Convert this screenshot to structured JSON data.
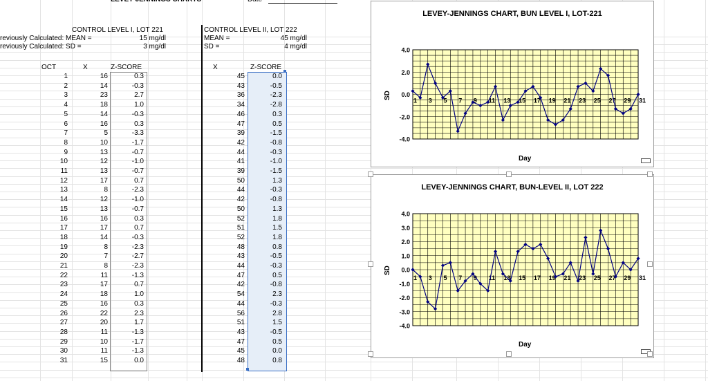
{
  "header": {
    "title_fragment": "LEVEY-JENNINGS CHARTS",
    "date_label": "Date"
  },
  "level1": {
    "header": "CONTROL LEVEL I, LOT 221",
    "mean_row_label": "reviously Calculated:  MEAN =",
    "mean_value": "15 mg/dl",
    "sd_row_label": "reviously Calculated:  SD =",
    "sd_value": "3 mg/dl",
    "col_oct": "OCT",
    "col_x": "X",
    "col_z": "Z-SCORE"
  },
  "level2": {
    "header": "CONTROL LEVEL II, LOT 222",
    "mean_label": "MEAN =",
    "mean_value": "45 mg/dl",
    "sd_label": "SD =",
    "sd_value": "4 mg/dl",
    "col_x": "X",
    "col_z": "Z-SCORE"
  },
  "rows": [
    {
      "day": "1",
      "x1": "16",
      "z1": "0.3",
      "x2": "45",
      "z2": "0.0"
    },
    {
      "day": "2",
      "x1": "14",
      "z1": "-0.3",
      "x2": "43",
      "z2": "-0.5"
    },
    {
      "day": "3",
      "x1": "23",
      "z1": "2.7",
      "x2": "36",
      "z2": "-2.3"
    },
    {
      "day": "4",
      "x1": "18",
      "z1": "1.0",
      "x2": "34",
      "z2": "-2.8"
    },
    {
      "day": "5",
      "x1": "14",
      "z1": "-0.3",
      "x2": "46",
      "z2": "0.3"
    },
    {
      "day": "6",
      "x1": "16",
      "z1": "0.3",
      "x2": "47",
      "z2": "0.5"
    },
    {
      "day": "7",
      "x1": "5",
      "z1": "-3.3",
      "x2": "39",
      "z2": "-1.5"
    },
    {
      "day": "8",
      "x1": "10",
      "z1": "-1.7",
      "x2": "42",
      "z2": "-0.8"
    },
    {
      "day": "9",
      "x1": "13",
      "z1": "-0.7",
      "x2": "44",
      "z2": "-0.3"
    },
    {
      "day": "10",
      "x1": "12",
      "z1": "-1.0",
      "x2": "41",
      "z2": "-1.0"
    },
    {
      "day": "11",
      "x1": "13",
      "z1": "-0.7",
      "x2": "39",
      "z2": "-1.5"
    },
    {
      "day": "12",
      "x1": "17",
      "z1": "0.7",
      "x2": "50",
      "z2": "1.3"
    },
    {
      "day": "13",
      "x1": "8",
      "z1": "-2.3",
      "x2": "44",
      "z2": "-0.3"
    },
    {
      "day": "14",
      "x1": "12",
      "z1": "-1.0",
      "x2": "42",
      "z2": "-0.8"
    },
    {
      "day": "15",
      "x1": "13",
      "z1": "-0.7",
      "x2": "50",
      "z2": "1.3"
    },
    {
      "day": "16",
      "x1": "16",
      "z1": "0.3",
      "x2": "52",
      "z2": "1.8"
    },
    {
      "day": "17",
      "x1": "17",
      "z1": "0.7",
      "x2": "51",
      "z2": "1.5"
    },
    {
      "day": "18",
      "x1": "14",
      "z1": "-0.3",
      "x2": "52",
      "z2": "1.8"
    },
    {
      "day": "19",
      "x1": "8",
      "z1": "-2.3",
      "x2": "48",
      "z2": "0.8"
    },
    {
      "day": "20",
      "x1": "7",
      "z1": "-2.7",
      "x2": "43",
      "z2": "-0.5"
    },
    {
      "day": "21",
      "x1": "8",
      "z1": "-2.3",
      "x2": "44",
      "z2": "-0.3"
    },
    {
      "day": "22",
      "x1": "11",
      "z1": "-1.3",
      "x2": "47",
      "z2": "0.5"
    },
    {
      "day": "23",
      "x1": "17",
      "z1": "0.7",
      "x2": "42",
      "z2": "-0.8"
    },
    {
      "day": "24",
      "x1": "18",
      "z1": "1.0",
      "x2": "54",
      "z2": "2.3"
    },
    {
      "day": "25",
      "x1": "16",
      "z1": "0.3",
      "x2": "44",
      "z2": "-0.3"
    },
    {
      "day": "26",
      "x1": "22",
      "z1": "2.3",
      "x2": "56",
      "z2": "2.8"
    },
    {
      "day": "27",
      "x1": "20",
      "z1": "1.7",
      "x2": "51",
      "z2": "1.5"
    },
    {
      "day": "28",
      "x1": "11",
      "z1": "-1.3",
      "x2": "43",
      "z2": "-0.5"
    },
    {
      "day": "29",
      "x1": "10",
      "z1": "-1.7",
      "x2": "47",
      "z2": "0.5"
    },
    {
      "day": "30",
      "x1": "11",
      "z1": "-1.3",
      "x2": "45",
      "z2": "0.0"
    },
    {
      "day": "31",
      "x1": "15",
      "z1": "0.0",
      "x2": "48",
      "z2": "0.8"
    }
  ],
  "chart_data": [
    {
      "type": "line",
      "title": "LEVEY-JENNINGS CHART,  BUN LEVEL I, LOT-221",
      "xlabel": "Day",
      "ylabel": "SD",
      "ylim": [
        -4,
        4
      ],
      "yticks": [
        "4.0",
        "2.0",
        "0.0",
        "-2.0",
        "-4.0"
      ],
      "xtick_labels": [
        "1",
        "3",
        "5",
        "7",
        "9",
        "11",
        "13",
        "15",
        "17",
        "19",
        "21",
        "23",
        "25",
        "27",
        "29",
        "31"
      ],
      "x": [
        1,
        2,
        3,
        4,
        5,
        6,
        7,
        8,
        9,
        10,
        11,
        12,
        13,
        14,
        15,
        16,
        17,
        18,
        19,
        20,
        21,
        22,
        23,
        24,
        25,
        26,
        27,
        28,
        29,
        30,
        31
      ],
      "values": [
        0.3,
        -0.3,
        2.7,
        1.0,
        -0.3,
        0.3,
        -3.3,
        -1.7,
        -0.7,
        -1.0,
        -0.7,
        0.7,
        -2.3,
        -1.0,
        -0.7,
        0.3,
        0.7,
        -0.3,
        -2.3,
        -2.7,
        -2.3,
        -1.3,
        0.7,
        1.0,
        0.3,
        2.3,
        1.7,
        -1.3,
        -1.7,
        -1.3,
        0.0
      ],
      "grid": true,
      "plot_bg": "#ffffc0",
      "line_color": "#000080"
    },
    {
      "type": "line",
      "title": "LEVEY-JENNINGS CHART, BUN-LEVEL II, LOT 222",
      "xlabel": "Day",
      "ylabel": "SD",
      "ylim": [
        -4,
        4
      ],
      "yticks": [
        "4.0",
        "3.0",
        "2.0",
        "1.0",
        "0.0",
        "-1.0",
        "-2.0",
        "-3.0",
        "-4.0"
      ],
      "xtick_labels": [
        "1",
        "3",
        "5",
        "7",
        "9",
        "11",
        "13",
        "15",
        "17",
        "19",
        "21",
        "23",
        "25",
        "27",
        "29",
        "31"
      ],
      "x": [
        1,
        2,
        3,
        4,
        5,
        6,
        7,
        8,
        9,
        10,
        11,
        12,
        13,
        14,
        15,
        16,
        17,
        18,
        19,
        20,
        21,
        22,
        23,
        24,
        25,
        26,
        27,
        28,
        29,
        30,
        31
      ],
      "values": [
        0.0,
        -0.5,
        -2.3,
        -2.8,
        0.3,
        0.5,
        -1.5,
        -0.8,
        -0.3,
        -1.0,
        -1.5,
        1.3,
        -0.3,
        -0.8,
        1.3,
        1.8,
        1.5,
        1.8,
        0.8,
        -0.5,
        -0.3,
        0.5,
        -0.8,
        2.3,
        -0.3,
        2.8,
        1.5,
        -0.5,
        0.5,
        0.0,
        0.8
      ],
      "grid": true,
      "plot_bg": "#ffffc0",
      "line_color": "#000080"
    }
  ]
}
